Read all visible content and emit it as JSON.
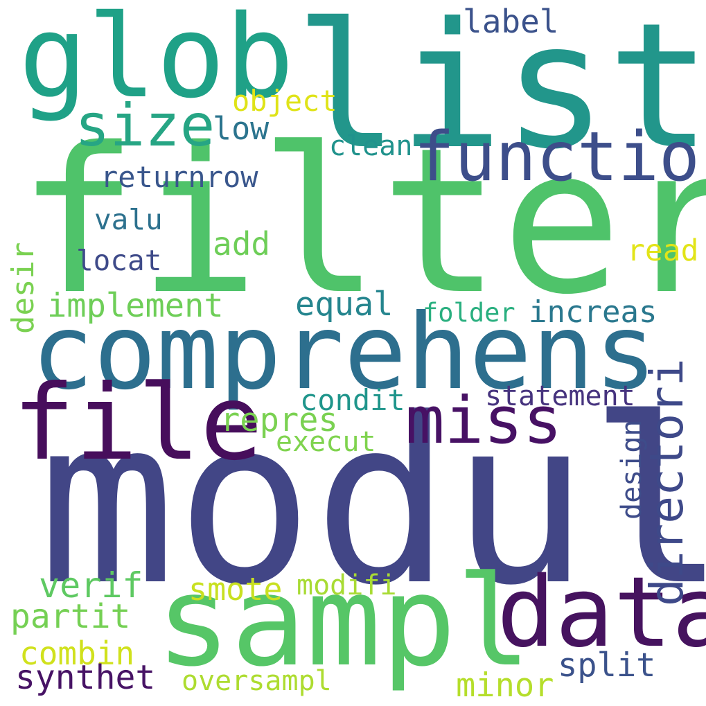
{
  "words": {
    "filter": {
      "text": "filter",
      "color": "#4fc36a"
    },
    "modul": {
      "text": "modul",
      "color": "#424686"
    },
    "list": {
      "text": "list",
      "color": "#22968b"
    },
    "glob": {
      "text": "glob",
      "color": "#1fa187"
    },
    "comprehens": {
      "text": "comprehens",
      "color": "#2d6f8e"
    },
    "file": {
      "text": "file",
      "color": "#470e5c"
    },
    "sampl": {
      "text": "sampl",
      "color": "#56c667"
    },
    "data": {
      "text": "data",
      "color": "#46135f"
    },
    "function": {
      "text": "function",
      "color": "#3d4e8a"
    },
    "miss": {
      "text": "miss",
      "color": "#471164"
    },
    "size": {
      "text": "size",
      "color": "#26a584"
    },
    "directori": {
      "text": "directori",
      "color": "#3e4989"
    },
    "implement": {
      "text": "implement",
      "color": "#6ece58"
    },
    "equal": {
      "text": "equal",
      "color": "#25858e"
    },
    "increas": {
      "text": "increas",
      "color": "#2a788e"
    },
    "folder": {
      "text": "folder",
      "color": "#29af7f"
    },
    "add": {
      "text": "add",
      "color": "#6ece58"
    },
    "locat": {
      "text": "locat",
      "color": "#3e4a89"
    },
    "valu": {
      "text": "valu",
      "color": "#2d718e"
    },
    "returnrow": {
      "text": "returnrow",
      "color": "#39568c"
    },
    "low": {
      "text": "low",
      "color": "#2b748e"
    },
    "object": {
      "text": "object",
      "color": "#dfe318"
    },
    "clean": {
      "text": "clean",
      "color": "#20928c"
    },
    "label": {
      "text": "label",
      "color": "#3b528b"
    },
    "read": {
      "text": "read",
      "color": "#e2e418"
    },
    "desir": {
      "text": "desir",
      "color": "#7ad151"
    },
    "condit": {
      "text": "condit",
      "color": "#1f958b"
    },
    "statement": {
      "text": "statement",
      "color": "#46337e"
    },
    "repres": {
      "text": "repres",
      "color": "#7ad151"
    },
    "execut": {
      "text": "execut",
      "color": "#7fd34e"
    },
    "design": {
      "text": "design",
      "color": "#3e4c8a"
    },
    "verif": {
      "text": "verif",
      "color": "#5ec962"
    },
    "smote": {
      "text": "smote",
      "color": "#c8e020"
    },
    "modifi": {
      "text": "modifi",
      "color": "#a8db34"
    },
    "partit": {
      "text": "partit",
      "color": "#75d054"
    },
    "combin": {
      "text": "combin",
      "color": "#d0e11c"
    },
    "synthet": {
      "text": "synthet",
      "color": "#471365"
    },
    "oversampl": {
      "text": "oversampl",
      "color": "#addc30"
    },
    "minor": {
      "text": "minor",
      "color": "#b5de2b"
    },
    "split": {
      "text": "split",
      "color": "#3b528b"
    }
  }
}
